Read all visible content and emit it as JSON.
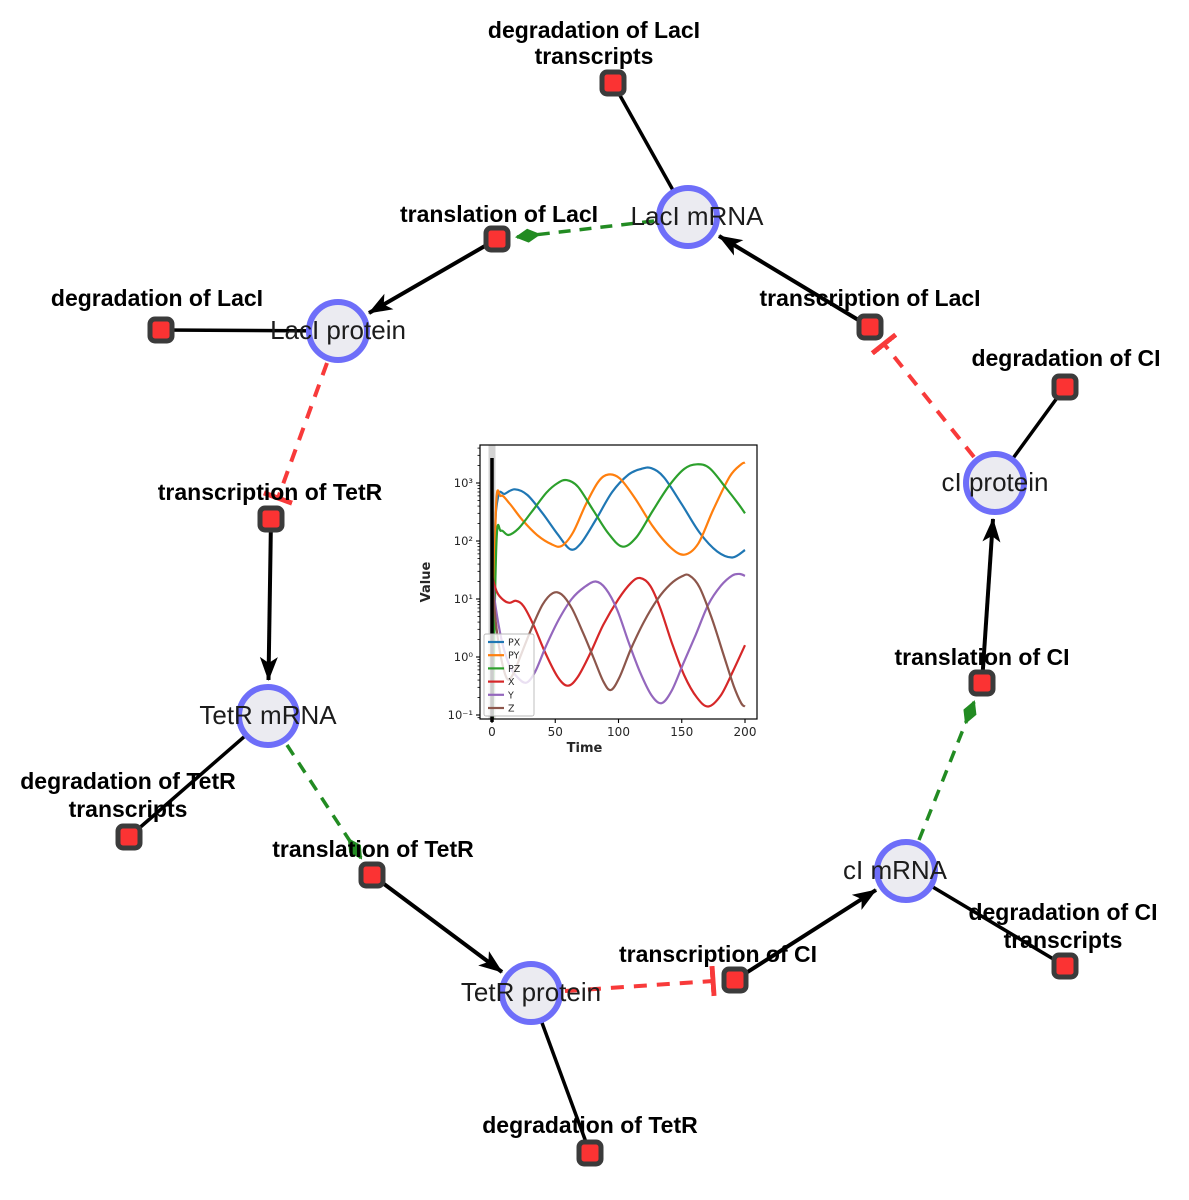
{
  "diagram": {
    "species": [
      {
        "id": "laci-mrna",
        "label": "LacI mRNA"
      },
      {
        "id": "laci-protein",
        "label": "LacI protein"
      },
      {
        "id": "ci-protein",
        "label": "cI protein"
      },
      {
        "id": "tetr-mrna",
        "label": "TetR mRNA"
      },
      {
        "id": "ci-mrna",
        "label": "cI mRNA"
      },
      {
        "id": "tetr-protein",
        "label": "TetR protein"
      }
    ],
    "reactions": [
      {
        "id": "deg-laci-transcripts",
        "lines": [
          "degradation of LacI",
          "transcripts"
        ]
      },
      {
        "id": "translation-laci",
        "label": "translation of LacI"
      },
      {
        "id": "deg-laci",
        "label": "degradation of LacI"
      },
      {
        "id": "transcription-laci",
        "label": "transcription of LacI"
      },
      {
        "id": "deg-ci",
        "label": "degradation of CI"
      },
      {
        "id": "transcription-tetr",
        "label": "transcription of TetR"
      },
      {
        "id": "translation-ci",
        "label": "translation of CI"
      },
      {
        "id": "deg-tetr-transcripts",
        "lines": [
          "degradation of TetR",
          "transcripts"
        ]
      },
      {
        "id": "translation-tetr",
        "label": "translation of TetR"
      },
      {
        "id": "transcription-ci",
        "label": "transcription of CI"
      },
      {
        "id": "deg-ci-transcripts",
        "lines": [
          "degradation of CI",
          "transcripts"
        ]
      },
      {
        "id": "deg-tetr",
        "label": "degradation of TetR"
      }
    ],
    "edges": [
      {
        "type": "reactant",
        "from": "LacI mRNA",
        "to": "degradation of LacI transcripts"
      },
      {
        "type": "reactant",
        "from": "LacI protein",
        "to": "degradation of LacI"
      },
      {
        "type": "reactant",
        "from": "cI protein",
        "to": "degradation of CI"
      },
      {
        "type": "reactant",
        "from": "cI mRNA",
        "to": "degradation of CI transcripts"
      },
      {
        "type": "reactant",
        "from": "TetR protein",
        "to": "degradation of TetR"
      },
      {
        "type": "reactant",
        "from": "TetR mRNA",
        "to": "degradation of TetR transcripts"
      },
      {
        "type": "product",
        "from": "transcription of LacI",
        "to": "LacI mRNA"
      },
      {
        "type": "product",
        "from": "translation of LacI",
        "to": "LacI protein"
      },
      {
        "type": "product",
        "from": "translation of CI",
        "to": "cI protein"
      },
      {
        "type": "product",
        "from": "transcription of CI",
        "to": "cI mRNA"
      },
      {
        "type": "product",
        "from": "translation of TetR",
        "to": "TetR protein"
      },
      {
        "type": "product",
        "from": "transcription of TetR",
        "to": "TetR mRNA"
      },
      {
        "type": "modifier",
        "from": "LacI mRNA",
        "to": "translation of LacI"
      },
      {
        "type": "modifier",
        "from": "cI mRNA",
        "to": "translation of CI"
      },
      {
        "type": "modifier",
        "from": "TetR mRNA",
        "to": "translation of TetR"
      },
      {
        "type": "inhibition",
        "from": "LacI protein",
        "to": "transcription of TetR"
      },
      {
        "type": "inhibition",
        "from": "cI protein",
        "to": "transcription of LacI"
      },
      {
        "type": "inhibition",
        "from": "TetR protein",
        "to": "transcription of CI"
      }
    ],
    "colors": {
      "species_fill": "#ebebf1",
      "species_stroke": "#6e6ef9",
      "reaction_fill": "#fb3333",
      "reaction_stroke": "#3b3b3b",
      "product_edge": "#000000",
      "modifier_edge": "#228B22",
      "inhibition_edge": "#f83a3a"
    }
  },
  "chart_data": {
    "type": "line",
    "title": "",
    "xlabel": "Time",
    "ylabel": "Value",
    "yscale": "log",
    "grid": false,
    "legend_position": "lower left",
    "xlim": [
      -10,
      210
    ],
    "ylim": [
      0.085,
      4500
    ],
    "x_ticks": [
      0,
      50,
      100,
      150,
      200
    ],
    "y_tick_exps": [
      3,
      2,
      1,
      0,
      -1
    ],
    "y_tick_labels": [
      "10³",
      "10²",
      "10¹",
      "10⁰",
      "10⁻¹"
    ],
    "vline_t": 0,
    "series": [
      {
        "name": "PX",
        "color": "#1f77b4",
        "points": [
          [
            0.4,
            0.05
          ],
          [
            2,
            80
          ],
          [
            5,
            600
          ],
          [
            10,
            650
          ],
          [
            18,
            780
          ],
          [
            28,
            620
          ],
          [
            40,
            300
          ],
          [
            52,
            130
          ],
          [
            62,
            72
          ],
          [
            70,
            90
          ],
          [
            82,
            230
          ],
          [
            95,
            700
          ],
          [
            108,
            1400
          ],
          [
            118,
            1750
          ],
          [
            126,
            1800
          ],
          [
            136,
            1250
          ],
          [
            150,
            430
          ],
          [
            164,
            140
          ],
          [
            178,
            66
          ],
          [
            190,
            52
          ],
          [
            200,
            70
          ]
        ]
      },
      {
        "name": "PY",
        "color": "#ff7f0e",
        "points": [
          [
            0.4,
            0.05
          ],
          [
            3,
            300
          ],
          [
            7,
            600
          ],
          [
            14,
            440
          ],
          [
            24,
            230
          ],
          [
            36,
            125
          ],
          [
            47,
            88
          ],
          [
            55,
            82
          ],
          [
            64,
            140
          ],
          [
            74,
            420
          ],
          [
            84,
            1050
          ],
          [
            92,
            1400
          ],
          [
            101,
            1200
          ],
          [
            113,
            550
          ],
          [
            127,
            180
          ],
          [
            141,
            78
          ],
          [
            152,
            58
          ],
          [
            163,
            90
          ],
          [
            175,
            350
          ],
          [
            188,
            1300
          ],
          [
            197,
            2100
          ],
          [
            200,
            2250
          ]
        ]
      },
      {
        "name": "PZ",
        "color": "#2ca02c",
        "points": [
          [
            0.4,
            0.05
          ],
          [
            3.5,
            90
          ],
          [
            7,
            150
          ],
          [
            13,
            127
          ],
          [
            21,
            165
          ],
          [
            31,
            310
          ],
          [
            43,
            680
          ],
          [
            52,
            1000
          ],
          [
            59,
            1120
          ],
          [
            68,
            860
          ],
          [
            80,
            340
          ],
          [
            92,
            135
          ],
          [
            103,
            80
          ],
          [
            114,
            115
          ],
          [
            127,
            330
          ],
          [
            140,
            900
          ],
          [
            152,
            1750
          ],
          [
            162,
            2100
          ],
          [
            172,
            1800
          ],
          [
            185,
            820
          ],
          [
            195,
            430
          ],
          [
            200,
            300
          ]
        ]
      },
      {
        "name": "X",
        "color": "#d62728",
        "points": [
          [
            0,
            25
          ],
          [
            4,
            13
          ],
          [
            9,
            9.6
          ],
          [
            14,
            8.6
          ],
          [
            19,
            9.3
          ],
          [
            25,
            7.5
          ],
          [
            33,
            3.5
          ],
          [
            42,
            1.2
          ],
          [
            52,
            0.45
          ],
          [
            60,
            0.32
          ],
          [
            68,
            0.46
          ],
          [
            78,
            1.2
          ],
          [
            88,
            3.6
          ],
          [
            100,
            10
          ],
          [
            110,
            19
          ],
          [
            117,
            23
          ],
          [
            125,
            17
          ],
          [
            133,
            7
          ],
          [
            142,
            1.8
          ],
          [
            152,
            0.48
          ],
          [
            162,
            0.2
          ],
          [
            171,
            0.14
          ],
          [
            181,
            0.22
          ],
          [
            191,
            0.6
          ],
          [
            200,
            1.6
          ]
        ]
      },
      {
        "name": "Y",
        "color": "#9467bd",
        "points": [
          [
            0,
            25
          ],
          [
            3,
            7
          ],
          [
            8,
            1.8
          ],
          [
            14,
            0.7
          ],
          [
            20,
            0.45
          ],
          [
            27,
            0.36
          ],
          [
            34,
            0.55
          ],
          [
            43,
            1.6
          ],
          [
            53,
            4.5
          ],
          [
            63,
            10
          ],
          [
            73,
            16
          ],
          [
            82,
            20
          ],
          [
            90,
            15
          ],
          [
            99,
            6.5
          ],
          [
            108,
            1.8
          ],
          [
            117,
            0.55
          ],
          [
            126,
            0.22
          ],
          [
            134,
            0.16
          ],
          [
            142,
            0.26
          ],
          [
            151,
            0.75
          ],
          [
            161,
            2.4
          ],
          [
            171,
            8
          ],
          [
            181,
            17
          ],
          [
            190,
            25.5
          ],
          [
            196,
            27
          ],
          [
            200,
            25
          ]
        ]
      },
      {
        "name": "Z",
        "color": "#8c564b",
        "points": [
          [
            0,
            25
          ],
          [
            3,
            4
          ],
          [
            7,
            1
          ],
          [
            12,
            0.42
          ],
          [
            17,
            0.52
          ],
          [
            23,
            1.1
          ],
          [
            31,
            3
          ],
          [
            40,
            8
          ],
          [
            48,
            12.6
          ],
          [
            55,
            12
          ],
          [
            63,
            7
          ],
          [
            72,
            2.6
          ],
          [
            80,
            1
          ],
          [
            88,
            0.38
          ],
          [
            94,
            0.27
          ],
          [
            101,
            0.46
          ],
          [
            110,
            1.4
          ],
          [
            120,
            4
          ],
          [
            131,
            10
          ],
          [
            141,
            18
          ],
          [
            150,
            24.5
          ],
          [
            156,
            25.5
          ],
          [
            164,
            16
          ],
          [
            174,
            4.5
          ],
          [
            183,
            1.1
          ],
          [
            191,
            0.32
          ],
          [
            197,
            0.16
          ],
          [
            200,
            0.14
          ]
        ]
      }
    ]
  }
}
